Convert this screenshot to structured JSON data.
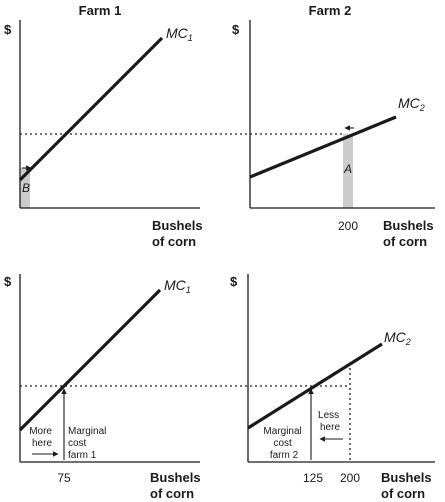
{
  "titles": {
    "farm1": "Farm 1",
    "farm2": "Farm 2"
  },
  "axis": {
    "y_symbol": "$",
    "x_line1": "Bushels",
    "x_line2": "of corn"
  },
  "curves": {
    "mc_prefix": "MC",
    "farm1_subscript": "1",
    "farm2_subscript": "2"
  },
  "top": {
    "area_a": "A",
    "area_b": "B",
    "farm2_tick": "200"
  },
  "bottom": {
    "farm1_tick": "75",
    "farm2_ticks": [
      "125",
      "200"
    ],
    "more_here": [
      "More",
      "here"
    ],
    "marginal_cost_farm1": [
      "Marginal",
      "cost",
      "farm 1"
    ],
    "less_here": [
      "Less",
      "here"
    ],
    "marginal_cost_farm2": [
      "Marginal",
      "cost",
      "farm 2"
    ]
  },
  "colors": {
    "ink": "#1a1a1a",
    "shade": "#cccccc"
  }
}
